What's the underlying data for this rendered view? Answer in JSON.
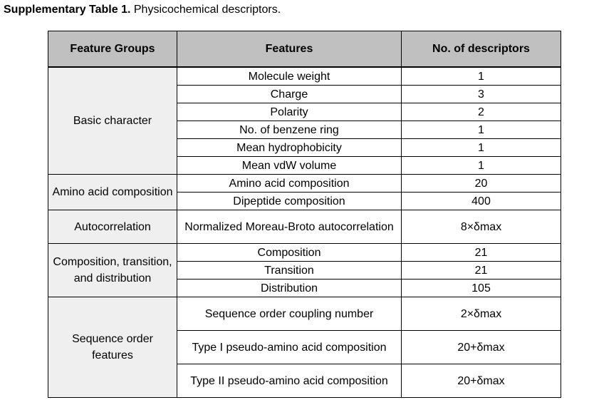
{
  "caption": {
    "label": "Supplementary Table 1.",
    "text": " Physicochemical descriptors."
  },
  "table": {
    "headers": [
      "Feature Groups",
      "Features",
      "No. of descriptors"
    ],
    "groups": [
      {
        "name": "Basic character",
        "rows": [
          {
            "feature": "Molecule weight",
            "count": "1"
          },
          {
            "feature": "Charge",
            "count": "3"
          },
          {
            "feature": "Polarity",
            "count": "2"
          },
          {
            "feature": "No. of benzene ring",
            "count": "1"
          },
          {
            "feature": "Mean hydrophobicity",
            "count": "1"
          },
          {
            "feature": "Mean vdW volume",
            "count": "1"
          }
        ]
      },
      {
        "name": "Amino acid composition",
        "rows": [
          {
            "feature": "Amino acid composition",
            "count": "20"
          },
          {
            "feature": "Dipeptide composition",
            "count": "400"
          }
        ]
      },
      {
        "name": "Autocorrelation",
        "rows": [
          {
            "feature": "Normalized Moreau-Broto autocorrelation",
            "count": "8×δmax"
          }
        ]
      },
      {
        "name": "Composition, transition, and distribution",
        "rows": [
          {
            "feature": "Composition",
            "count": "21"
          },
          {
            "feature": "Transition",
            "count": "21"
          },
          {
            "feature": "Distribution",
            "count": "105"
          }
        ]
      },
      {
        "name": "Sequence order features",
        "rows": [
          {
            "feature": "Sequence order coupling number",
            "count": "2×δmax"
          },
          {
            "feature": "Type I pseudo-amino acid composition",
            "count": "20+δmax"
          },
          {
            "feature": "Type II pseudo-amino acid composition",
            "count": "20+δmax"
          }
        ]
      }
    ]
  }
}
